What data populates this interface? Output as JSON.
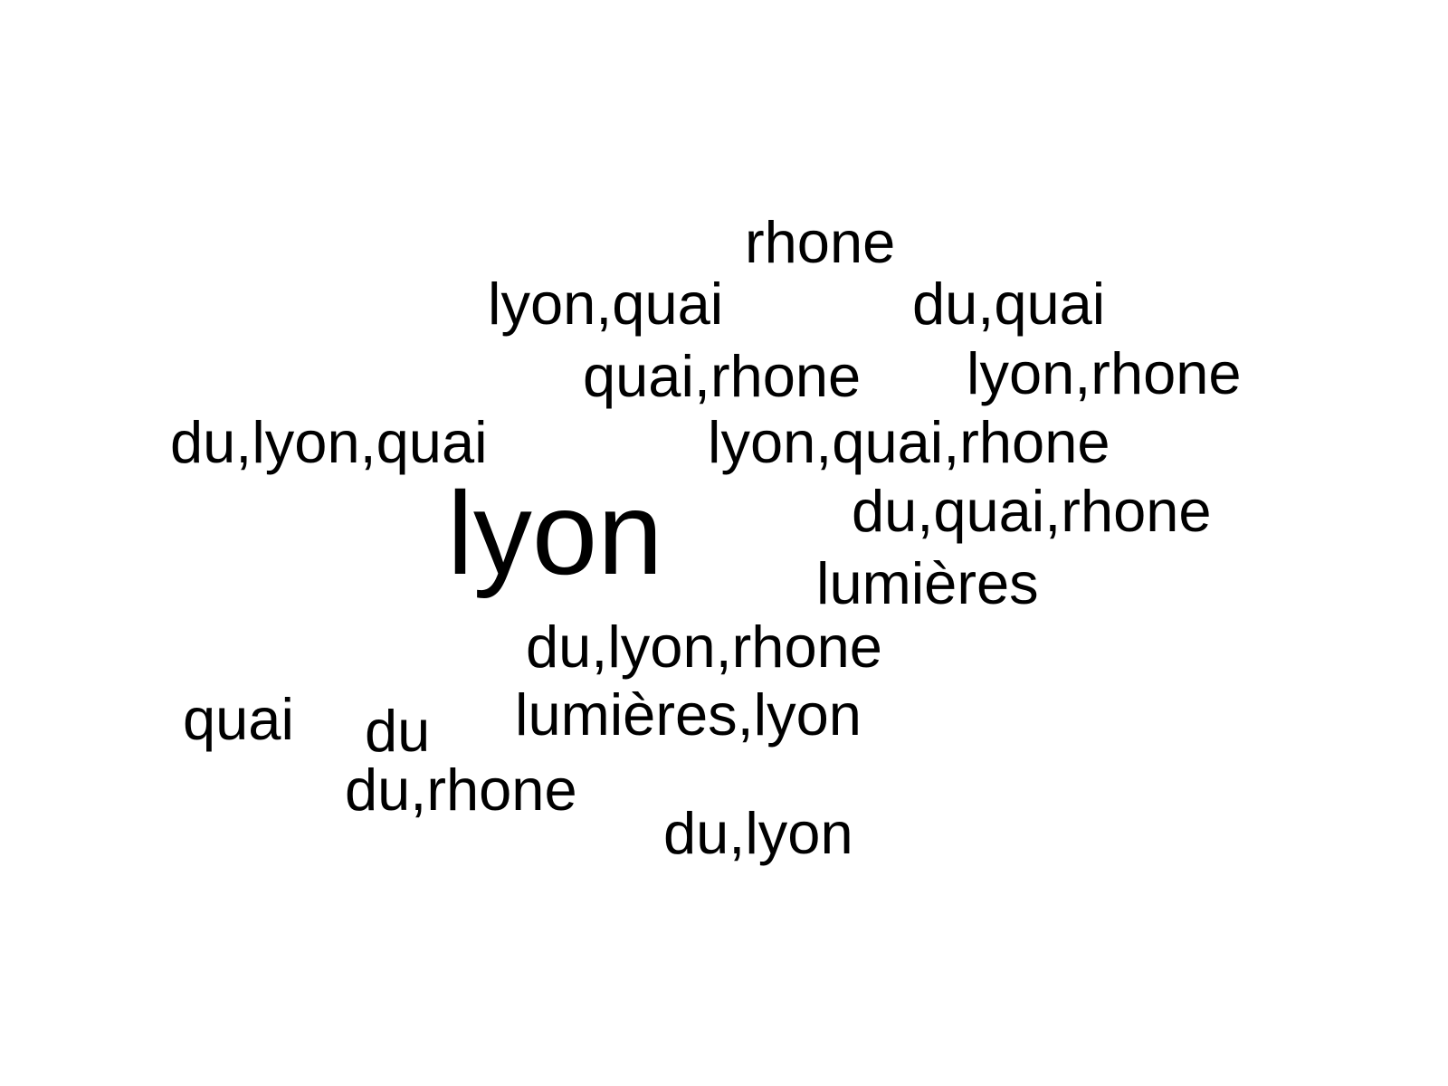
{
  "word_cloud": {
    "text_color": "#000000",
    "background_color": "#ffffff",
    "words": [
      {
        "text": "rhone"
      },
      {
        "text": "lyon,quai"
      },
      {
        "text": "du,quai"
      },
      {
        "text": "quai,rhone"
      },
      {
        "text": "lyon,rhone"
      },
      {
        "text": "du,lyon,quai"
      },
      {
        "text": "lyon,quai,rhone"
      },
      {
        "text": "lyon"
      },
      {
        "text": "du,quai,rhone"
      },
      {
        "text": "lumières"
      },
      {
        "text": "du,lyon,rhone"
      },
      {
        "text": "lumières,lyon"
      },
      {
        "text": "quai"
      },
      {
        "text": "du"
      },
      {
        "text": "du,rhone"
      },
      {
        "text": "du,lyon"
      }
    ]
  }
}
